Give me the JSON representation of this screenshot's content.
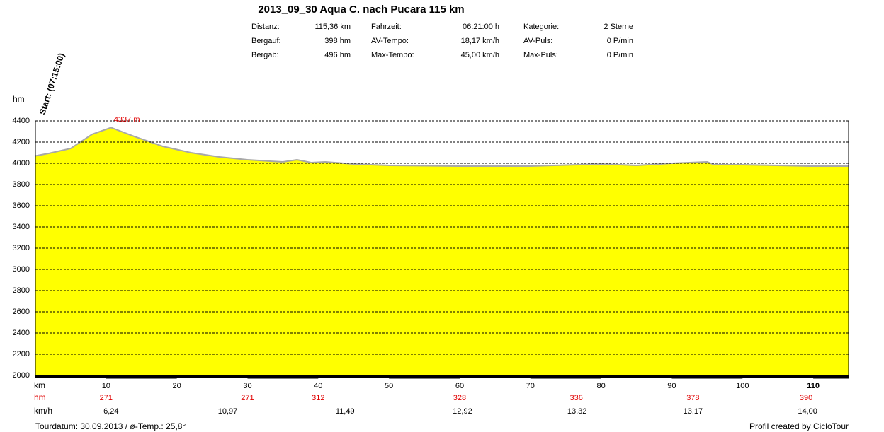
{
  "chart_data": {
    "type": "area",
    "title": "2013_09_30 Aqua C. nach Pucara 115 km",
    "stats": [
      [
        [
          "Distanz:",
          "115,36 km"
        ],
        [
          "Fahrzeit:",
          "06:21:00 h"
        ],
        [
          "Kategorie:",
          "2 Sterne"
        ]
      ],
      [
        [
          "Bergauf:",
          "398 hm"
        ],
        [
          "AV-Tempo:",
          "18,17 km/h"
        ],
        [
          "AV-Puls:",
          "0 P/min"
        ]
      ],
      [
        [
          "Bergab:",
          "496 hm"
        ],
        [
          "Max-Tempo:",
          "45,00 km/h"
        ],
        [
          "Max-Puls:",
          "0 P/min"
        ]
      ]
    ],
    "xlabel": "km",
    "ylabel": "hm",
    "start_label": "Start: (07:15:00)",
    "x": [
      0,
      2,
      5,
      8,
      10.7,
      14,
      18,
      22,
      26,
      30,
      35,
      37,
      39,
      41,
      45,
      50,
      60,
      70,
      80,
      85,
      90,
      95,
      96,
      100,
      110,
      115
    ],
    "values": [
      4070,
      4095,
      4140,
      4273,
      4337,
      4253,
      4160,
      4100,
      4060,
      4033,
      4013,
      4033,
      4007,
      4013,
      3993,
      3980,
      3973,
      3973,
      3993,
      3980,
      4000,
      4013,
      3987,
      3987,
      3973,
      3973
    ],
    "color": "#ffff00",
    "line_color": "#a8a8a8",
    "annotations": [
      {
        "x": 10.7,
        "y": 4337,
        "label": "4337 m"
      }
    ],
    "xlim": [
      0,
      115
    ],
    "ylim": [
      2000,
      4400
    ],
    "xticks": [
      10,
      20,
      30,
      40,
      50,
      60,
      70,
      80,
      90,
      100,
      110
    ],
    "yticks": [
      2000,
      2200,
      2400,
      2600,
      2800,
      3000,
      3200,
      3400,
      3600,
      3800,
      4000,
      4200,
      4400
    ],
    "grid": true,
    "climb_row": {
      "name": "hm",
      "x": [
        10,
        30,
        40,
        60,
        76.5,
        93,
        109
      ],
      "values": [
        271,
        271,
        312,
        328,
        336,
        378,
        390
      ]
    },
    "speed_row": {
      "name": "km/h",
      "x": [
        10.7,
        27.2,
        43.8,
        60.4,
        76.6,
        93,
        109.2
      ],
      "values": [
        6.24,
        10.97,
        11.49,
        12.92,
        13.32,
        13.17,
        14.0
      ],
      "value_labels": [
        "6,24",
        "10,97",
        "11,49",
        "12,92",
        "13,32",
        "13,17",
        "14,00"
      ]
    },
    "footer_left": "Tourdatum: 30.09.2013  /  ø-Temp.: 25,8°",
    "footer_right": "Profil created by CicloTour"
  }
}
